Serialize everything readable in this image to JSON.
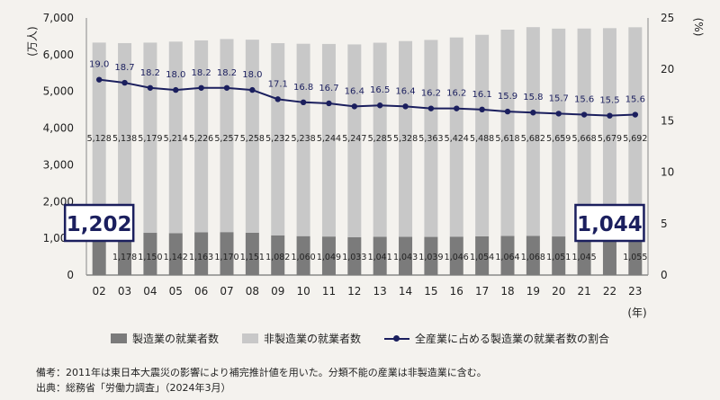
{
  "chart_data": {
    "type": "bar",
    "stacked": true,
    "ylabel": "(万人)",
    "y2label": "(%)",
    "xunit": "(年)",
    "ylim": [
      0,
      7000
    ],
    "yticks": [
      "0",
      "1,000",
      "2,000",
      "3,000",
      "4,000",
      "5,000",
      "6,000",
      "7,000"
    ],
    "y2lim": [
      0,
      25
    ],
    "y2ticks": [
      "0",
      "5",
      "10",
      "15",
      "20",
      "25"
    ],
    "categories": [
      "02",
      "03",
      "04",
      "05",
      "06",
      "07",
      "08",
      "09",
      "10",
      "11",
      "12",
      "13",
      "14",
      "15",
      "16",
      "17",
      "18",
      "19",
      "20",
      "21",
      "22",
      "23"
    ],
    "series": [
      {
        "name": "製造業の就業者数",
        "color": "#7b7b7b",
        "values": [
          1202,
          1178,
          1150,
          1142,
          1163,
          1170,
          1151,
          1082,
          1060,
          1049,
          1033,
          1041,
          1043,
          1039,
          1046,
          1054,
          1064,
          1068,
          1051,
          1045,
          1044,
          1055
        ],
        "labels": [
          "",
          "1,178",
          "1,150",
          "1,142",
          "1,163",
          "1,170",
          "1,151",
          "1,082",
          "1,060",
          "1,049",
          "1,033",
          "1,041",
          "1,043",
          "1,039",
          "1,046",
          "1,054",
          "1,064",
          "1,068",
          "1,051",
          "1,045",
          "",
          "1,055"
        ]
      },
      {
        "name": "非製造業の就業者数",
        "color": "#c8c8c8",
        "values": [
          5128,
          5138,
          5179,
          5214,
          5226,
          5257,
          5258,
          5232,
          5238,
          5244,
          5247,
          5285,
          5328,
          5363,
          5424,
          5488,
          5618,
          5682,
          5659,
          5668,
          5679,
          5692
        ],
        "labels": [
          "5,128",
          "5,138",
          "5,179",
          "5,214",
          "5,226",
          "5,257",
          "5,258",
          "5,232",
          "5,238",
          "5,244",
          "5,247",
          "5,285",
          "5,328",
          "5,363",
          "5,424",
          "5,488",
          "5,618",
          "5,682",
          "5,659",
          "5,668",
          "5,679",
          "5,692"
        ]
      },
      {
        "name": "全産業に占める製造業の就業者数の割合",
        "type": "line",
        "axis": "right",
        "color": "#1b1f5e",
        "values": [
          19.0,
          18.7,
          18.2,
          18.0,
          18.2,
          18.2,
          18.0,
          17.1,
          16.8,
          16.7,
          16.4,
          16.5,
          16.4,
          16.2,
          16.2,
          16.1,
          15.9,
          15.8,
          15.7,
          15.6,
          15.5,
          15.6
        ],
        "labels": [
          "19.0",
          "18.7",
          "18.2",
          "18.0",
          "18.2",
          "18.2",
          "18.0",
          "17.1",
          "16.8",
          "16.7",
          "16.4",
          "16.5",
          "16.4",
          "16.2",
          "16.2",
          "16.1",
          "15.9",
          "15.8",
          "15.7",
          "15.6",
          "15.5",
          "15.6"
        ]
      }
    ],
    "callouts": [
      {
        "text": "1,202",
        "index": 0
      },
      {
        "text": "1,044",
        "index": 20
      }
    ],
    "grid": false,
    "legend": "bottom"
  },
  "notes": [
    "備考：2011年は東日本大震災の影響により補完推計値を用いた。分類不能の産業は非製造業に含む。",
    "出典：総務省「労働力調査」（2024年3月）"
  ]
}
